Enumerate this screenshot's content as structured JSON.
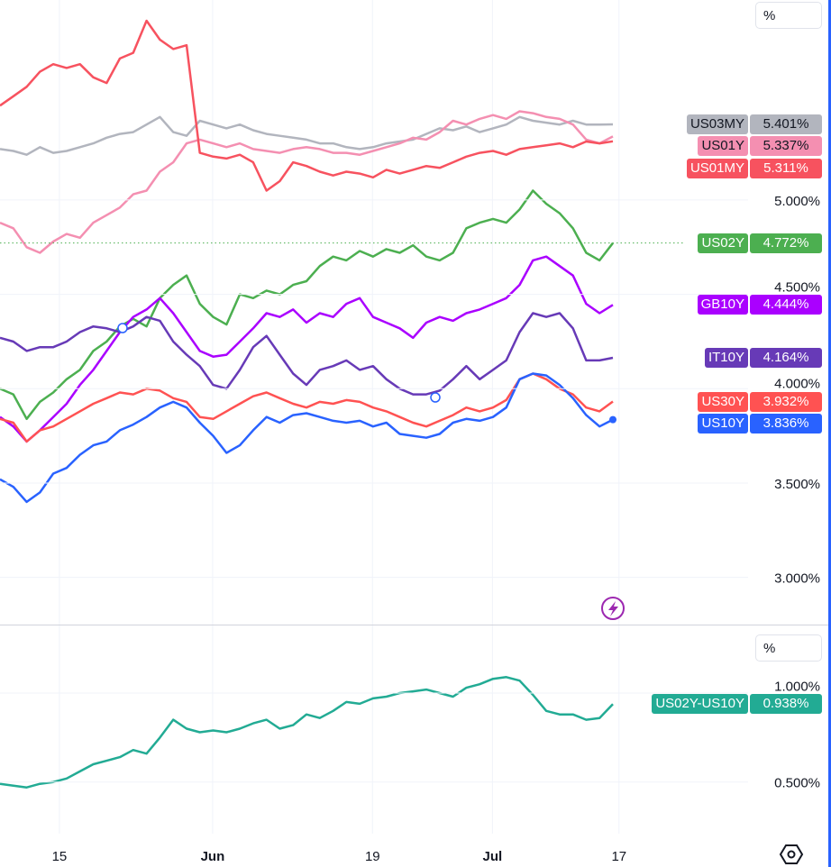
{
  "chart_data": [
    {
      "type": "line",
      "pane": "main",
      "unit_button": "%",
      "ylim": [
        2.75,
        6.06
      ],
      "y_ticks": [
        "5.000%",
        "4.500%",
        "4.000%",
        "3.500%",
        "3.000%"
      ],
      "y_tick_values": [
        5.0,
        4.5,
        4.0,
        3.5,
        3.0
      ],
      "x_tick_labels": [
        "15",
        "Jun",
        "19",
        "Jul",
        "17"
      ],
      "grid": true,
      "dates": [
        "2023-05-08",
        "2023-05-09",
        "2023-05-10",
        "2023-05-11",
        "2023-05-12",
        "2023-05-15",
        "2023-05-16",
        "2023-05-17",
        "2023-05-18",
        "2023-05-19",
        "2023-05-22",
        "2023-05-23",
        "2023-05-24",
        "2023-05-25",
        "2023-05-26",
        "2023-05-30",
        "2023-05-31",
        "2023-06-01",
        "2023-06-02",
        "2023-06-05",
        "2023-06-06",
        "2023-06-07",
        "2023-06-08",
        "2023-06-09",
        "2023-06-12",
        "2023-06-13",
        "2023-06-14",
        "2023-06-15",
        "2023-06-16",
        "2023-06-20",
        "2023-06-21",
        "2023-06-22",
        "2023-06-23",
        "2023-06-26",
        "2023-06-27",
        "2023-06-28",
        "2023-06-29",
        "2023-06-30",
        "2023-07-03",
        "2023-07-05",
        "2023-07-06",
        "2023-07-07",
        "2023-07-10",
        "2023-07-11",
        "2023-07-12",
        "2023-07-13",
        "2023-07-14"
      ],
      "series": [
        {
          "name": "US03MY",
          "last": "5.401%",
          "color": "#b2b5be",
          "text_color": "#131722",
          "values": [
            5.27,
            5.26,
            5.24,
            5.28,
            5.25,
            5.26,
            5.28,
            5.3,
            5.33,
            5.35,
            5.36,
            5.4,
            5.44,
            5.36,
            5.34,
            5.42,
            5.4,
            5.38,
            5.4,
            5.37,
            5.35,
            5.34,
            5.33,
            5.32,
            5.3,
            5.3,
            5.28,
            5.27,
            5.28,
            5.3,
            5.31,
            5.32,
            5.35,
            5.38,
            5.37,
            5.39,
            5.36,
            5.38,
            5.4,
            5.44,
            5.42,
            5.41,
            5.4,
            5.42,
            5.4,
            5.4,
            5.401
          ]
        },
        {
          "name": "US01Y",
          "last": "5.337%",
          "color": "#f48fb1",
          "text_color": "#131722",
          "values": [
            4.88,
            4.85,
            4.75,
            4.72,
            4.78,
            4.82,
            4.8,
            4.88,
            4.92,
            4.96,
            5.03,
            5.05,
            5.15,
            5.2,
            5.3,
            5.32,
            5.3,
            5.28,
            5.3,
            5.27,
            5.26,
            5.25,
            5.27,
            5.28,
            5.27,
            5.25,
            5.25,
            5.24,
            5.26,
            5.28,
            5.3,
            5.33,
            5.32,
            5.36,
            5.42,
            5.4,
            5.43,
            5.45,
            5.43,
            5.47,
            5.46,
            5.44,
            5.43,
            5.4,
            5.32,
            5.3,
            5.337
          ]
        },
        {
          "name": "US01MY",
          "last": "5.311%",
          "color": "#f7525f",
          "text_color": "#ffffff",
          "values": [
            5.5,
            5.55,
            5.6,
            5.68,
            5.72,
            5.7,
            5.72,
            5.65,
            5.62,
            5.75,
            5.78,
            5.95,
            5.85,
            5.8,
            5.82,
            5.25,
            5.23,
            5.22,
            5.24,
            5.2,
            5.05,
            5.1,
            5.2,
            5.18,
            5.15,
            5.13,
            5.15,
            5.14,
            5.12,
            5.16,
            5.14,
            5.16,
            5.18,
            5.17,
            5.2,
            5.23,
            5.25,
            5.26,
            5.24,
            5.27,
            5.28,
            5.29,
            5.3,
            5.28,
            5.31,
            5.3,
            5.311
          ]
        },
        {
          "name": "US02Y",
          "last": "4.772%",
          "color": "#4caf50",
          "text_color": "#ffffff",
          "dotted_last_line": true,
          "values": [
            4.0,
            3.97,
            3.84,
            3.93,
            3.98,
            4.05,
            4.1,
            4.2,
            4.25,
            4.33,
            4.37,
            4.33,
            4.48,
            4.55,
            4.6,
            4.45,
            4.38,
            4.34,
            4.5,
            4.48,
            4.52,
            4.5,
            4.55,
            4.57,
            4.65,
            4.7,
            4.68,
            4.73,
            4.7,
            4.74,
            4.72,
            4.76,
            4.7,
            4.68,
            4.72,
            4.85,
            4.88,
            4.9,
            4.88,
            4.95,
            5.05,
            4.98,
            4.93,
            4.85,
            4.72,
            4.68,
            4.772
          ]
        },
        {
          "name": "GB10Y",
          "last": "4.444%",
          "color": "#aa00ff",
          "text_color": "#ffffff",
          "values": [
            3.85,
            3.8,
            3.72,
            3.78,
            3.85,
            3.92,
            4.02,
            4.1,
            4.2,
            4.3,
            4.38,
            4.42,
            4.48,
            4.4,
            4.3,
            4.2,
            4.17,
            4.18,
            4.25,
            4.32,
            4.4,
            4.38,
            4.42,
            4.35,
            4.4,
            4.38,
            4.45,
            4.48,
            4.38,
            4.35,
            4.32,
            4.27,
            4.35,
            4.38,
            4.36,
            4.4,
            4.42,
            4.45,
            4.48,
            4.55,
            4.68,
            4.7,
            4.65,
            4.6,
            4.45,
            4.4,
            4.444
          ]
        },
        {
          "name": "IT10Y",
          "last": "4.164%",
          "color": "#673ab7",
          "text_color": "#ffffff",
          "values": [
            4.27,
            4.25,
            4.2,
            4.22,
            4.22,
            4.25,
            4.3,
            4.33,
            4.32,
            4.3,
            4.33,
            4.38,
            4.36,
            4.25,
            4.18,
            4.12,
            4.02,
            4.0,
            4.1,
            4.22,
            4.28,
            4.18,
            4.08,
            4.02,
            4.1,
            4.12,
            4.15,
            4.1,
            4.12,
            4.05,
            4.0,
            3.97,
            3.97,
            3.99,
            4.05,
            4.12,
            4.05,
            4.1,
            4.15,
            4.3,
            4.4,
            4.38,
            4.4,
            4.32,
            4.15,
            4.15,
            4.164
          ]
        },
        {
          "name": "US30Y",
          "last": "3.932%",
          "color": "#ff5252",
          "text_color": "#ffffff",
          "values": [
            3.84,
            3.82,
            3.72,
            3.78,
            3.8,
            3.84,
            3.88,
            3.92,
            3.95,
            3.98,
            3.97,
            4.0,
            3.99,
            3.95,
            3.93,
            3.85,
            3.84,
            3.88,
            3.92,
            3.96,
            3.98,
            3.95,
            3.92,
            3.9,
            3.93,
            3.92,
            3.94,
            3.93,
            3.9,
            3.88,
            3.85,
            3.82,
            3.8,
            3.83,
            3.86,
            3.9,
            3.88,
            3.9,
            3.94,
            4.05,
            4.08,
            4.05,
            4.0,
            3.97,
            3.9,
            3.88,
            3.932
          ]
        },
        {
          "name": "US10Y",
          "last": "3.836%",
          "color": "#2962ff",
          "text_color": "#ffffff",
          "values": [
            3.52,
            3.48,
            3.4,
            3.45,
            3.55,
            3.58,
            3.65,
            3.7,
            3.72,
            3.78,
            3.81,
            3.85,
            3.9,
            3.93,
            3.9,
            3.82,
            3.75,
            3.66,
            3.7,
            3.78,
            3.85,
            3.82,
            3.86,
            3.87,
            3.85,
            3.83,
            3.82,
            3.83,
            3.8,
            3.82,
            3.76,
            3.75,
            3.74,
            3.76,
            3.82,
            3.84,
            3.83,
            3.85,
            3.9,
            4.05,
            4.08,
            4.07,
            4.02,
            3.95,
            3.86,
            3.8,
            3.836
          ]
        }
      ]
    },
    {
      "type": "line",
      "pane": "spread",
      "unit_button": "%",
      "ylim": [
        0.21,
        1.38
      ],
      "y_ticks": [
        "1.000%",
        "0.500%"
      ],
      "y_tick_values": [
        1.0,
        0.5
      ],
      "grid": true,
      "series": [
        {
          "name": "US02Y-US10Y",
          "last": "0.938%",
          "color": "#22ab94",
          "text_color": "#ffffff",
          "values": [
            0.49,
            0.48,
            0.47,
            0.49,
            0.5,
            0.52,
            0.56,
            0.6,
            0.62,
            0.64,
            0.68,
            0.66,
            0.75,
            0.85,
            0.8,
            0.78,
            0.79,
            0.78,
            0.8,
            0.83,
            0.85,
            0.8,
            0.82,
            0.88,
            0.86,
            0.9,
            0.95,
            0.94,
            0.97,
            0.98,
            1.0,
            1.01,
            1.02,
            1.0,
            0.98,
            1.03,
            1.05,
            1.08,
            1.09,
            1.07,
            0.99,
            0.9,
            0.88,
            0.88,
            0.85,
            0.86,
            0.938
          ]
        }
      ]
    }
  ],
  "icons": {
    "lightning": "lightning-icon",
    "settings": "settings-hexagon-icon"
  },
  "accent_color": "#9c27b0"
}
